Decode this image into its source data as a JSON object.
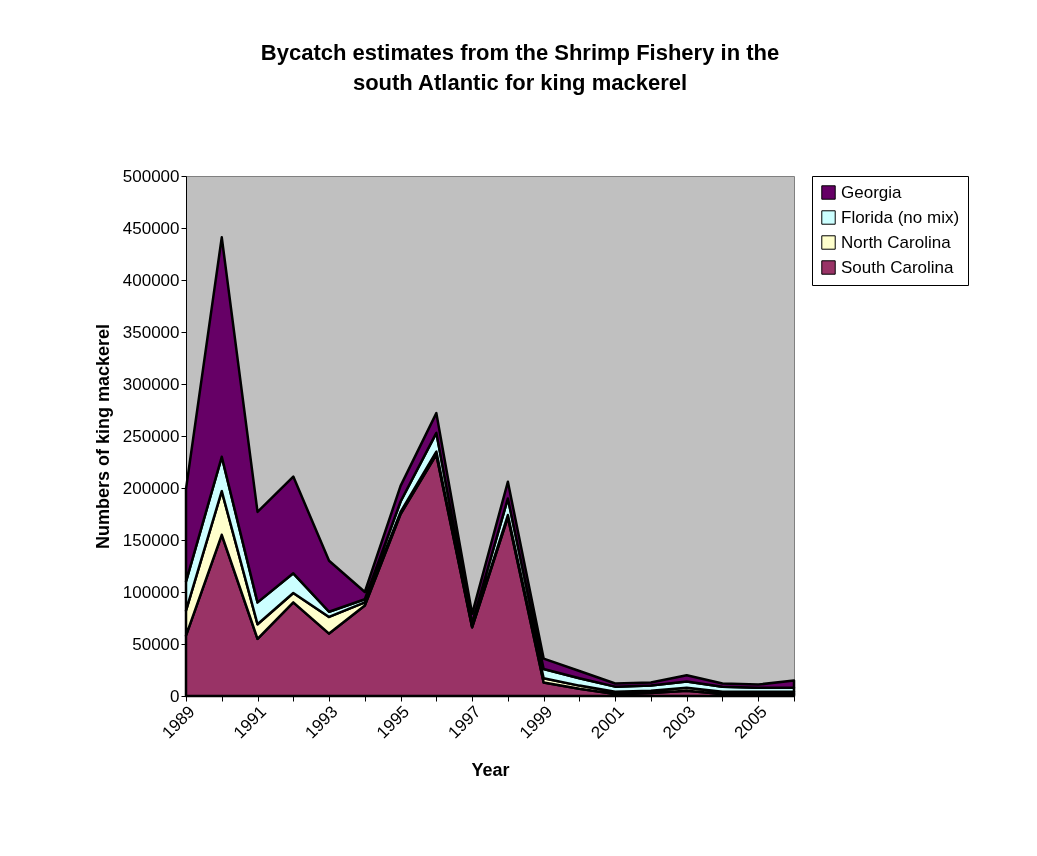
{
  "chart_data": {
    "type": "area",
    "stacked": true,
    "title": "Bycatch estimates from the Shrimp Fishery in the south Atlantic for king mackerel",
    "xlabel": "Year",
    "ylabel": "Numbers of king mackerel",
    "x": [
      1989,
      1990,
      1991,
      1992,
      1993,
      1994,
      1995,
      1996,
      1997,
      1998,
      1999,
      2000,
      2001,
      2002,
      2003,
      2004,
      2005,
      2006
    ],
    "series": [
      {
        "name": "South Carolina",
        "color": "#993366",
        "values": [
          58000,
          155000,
          55000,
          90000,
          60000,
          87000,
          175000,
          232000,
          66000,
          172000,
          13000,
          7000,
          2000,
          3000,
          5000,
          2000,
          2000,
          2000
        ]
      },
      {
        "name": "North Carolina",
        "color": "#ffffcc",
        "values": [
          24000,
          42000,
          14000,
          9000,
          16000,
          3000,
          2000,
          3000,
          1000,
          2000,
          4000,
          3000,
          2000,
          2000,
          3000,
          2000,
          2000,
          2000
        ]
      },
      {
        "name": "Florida (no mix)",
        "color": "#ccffff",
        "values": [
          28000,
          33000,
          21000,
          19000,
          5000,
          3000,
          10000,
          18000,
          3000,
          16000,
          9000,
          7000,
          5000,
          5000,
          6000,
          5000,
          4000,
          4000
        ]
      },
      {
        "name": "Georgia",
        "color": "#660066",
        "values": [
          89000,
          211000,
          87000,
          93000,
          49000,
          7000,
          15000,
          19000,
          9000,
          16000,
          10000,
          7000,
          3000,
          3000,
          6000,
          3000,
          3000,
          7000
        ]
      }
    ],
    "xlim": [
      1989,
      2006
    ],
    "xticks": [
      1989,
      {
        "value": 1990,
        "label": null
      },
      1991,
      {
        "value": 1992,
        "label": null
      },
      1993,
      {
        "value": 1994,
        "label": null
      },
      1995,
      {
        "value": 1996,
        "label": null
      },
      1997,
      {
        "value": 1998,
        "label": null
      },
      1999,
      {
        "value": 2000,
        "label": null
      },
      2001,
      {
        "value": 2002,
        "label": null
      },
      2003,
      {
        "value": 2004,
        "label": null
      },
      2005,
      {
        "value": 2006,
        "label": null
      }
    ],
    "ylim": [
      0,
      500000
    ],
    "yticks": [
      0,
      50000,
      100000,
      150000,
      200000,
      250000,
      300000,
      350000,
      400000,
      450000,
      500000
    ],
    "legend": "right"
  }
}
